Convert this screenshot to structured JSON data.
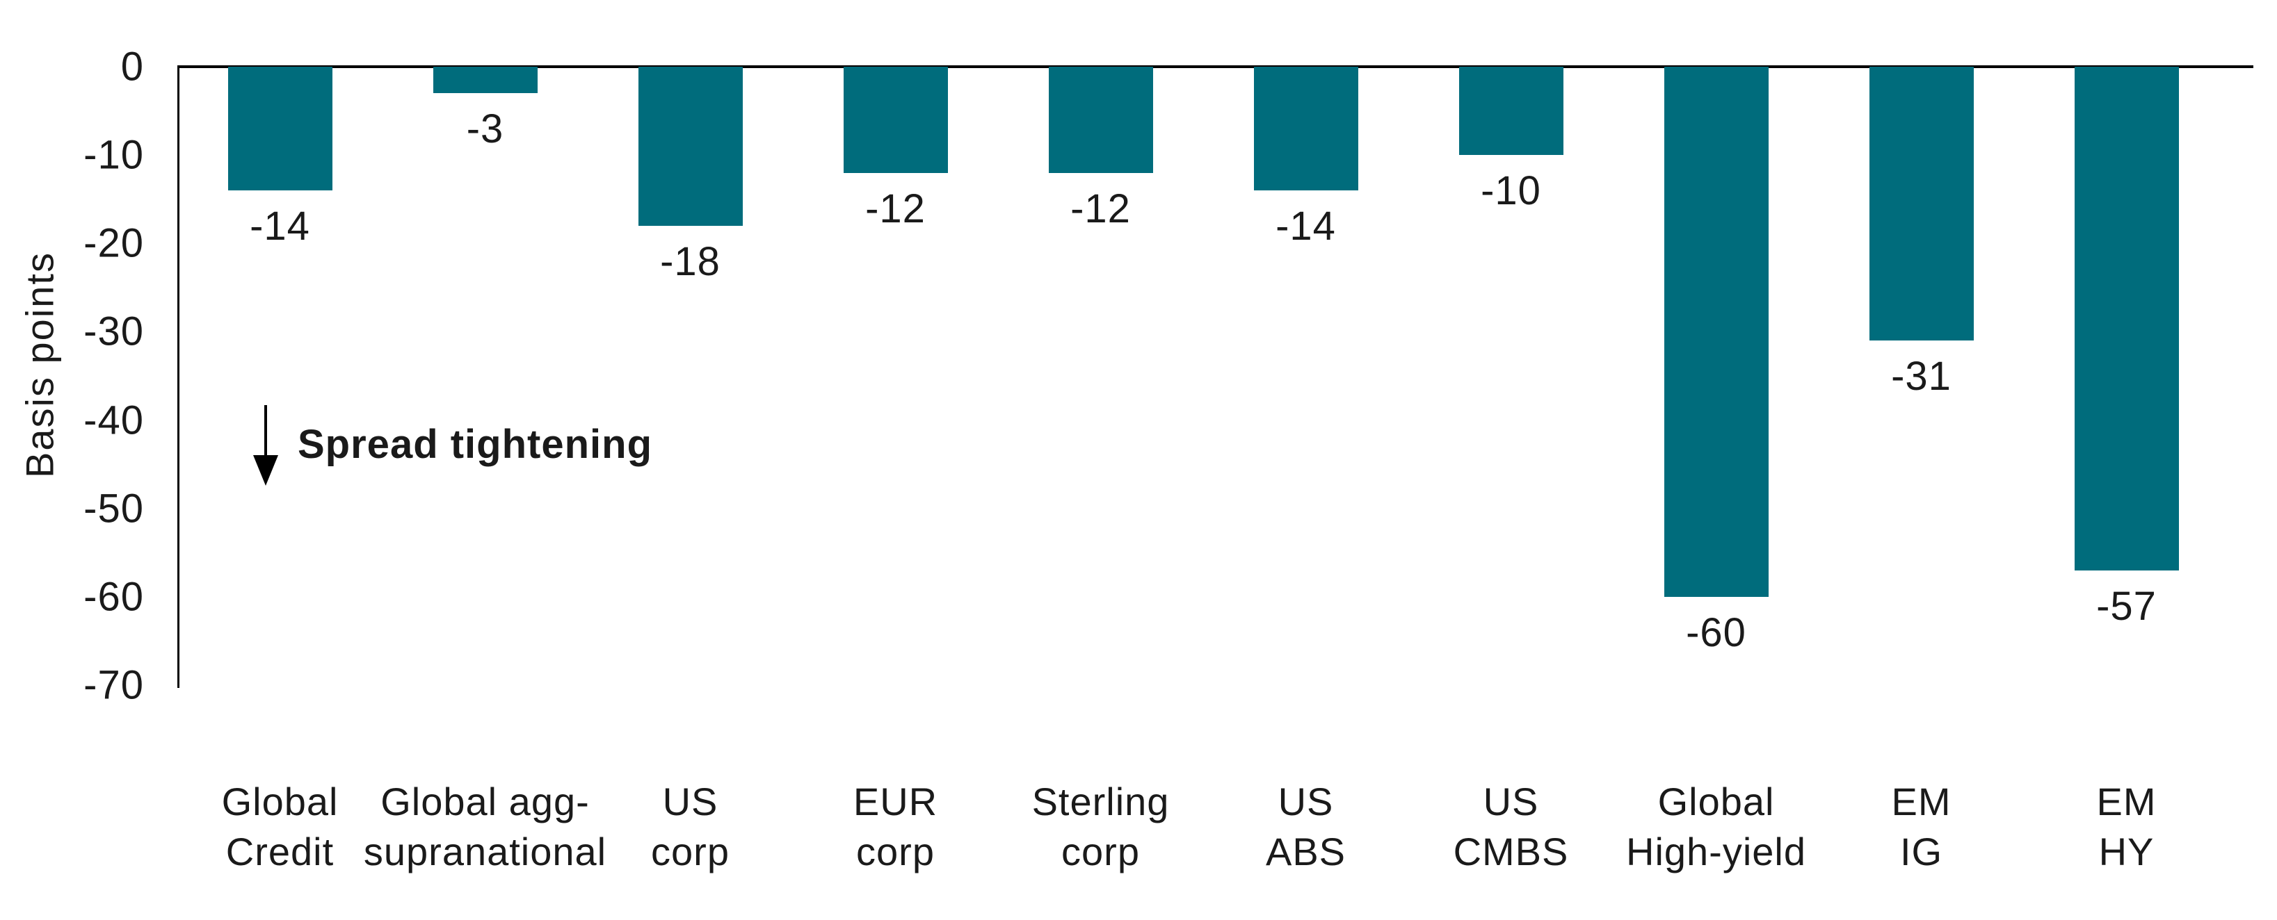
{
  "chart_data": {
    "type": "bar",
    "title": "",
    "ylabel": "Basis points",
    "xlabel": "",
    "categories": [
      "Global\nCredit",
      "Global agg-\nsupranational",
      "US\ncorp",
      "EUR\ncorp",
      "Sterling\ncorp",
      "US\nABS",
      "US\nCMBS",
      "Global\nHigh-yield",
      "EM\nIG",
      "EM\nHY"
    ],
    "values": [
      -14,
      -3,
      -18,
      -12,
      -12,
      -14,
      -10,
      -60,
      -31,
      -57
    ],
    "data_labels": [
      "-14",
      "-3",
      "-18",
      "-12",
      "-12",
      "-14",
      "-10",
      "-60",
      "-31",
      "-57"
    ],
    "ylim": [
      -70,
      0
    ],
    "yticks": [
      0,
      -10,
      -20,
      -30,
      -40,
      -50,
      -60,
      -70
    ],
    "grid": false,
    "legend": null,
    "bar_color": "#006C7C",
    "axis_color": "#000000",
    "text_color": "#1a1a1a",
    "annotation": {
      "icon": "down-arrow",
      "text": "Spread tightening"
    }
  }
}
